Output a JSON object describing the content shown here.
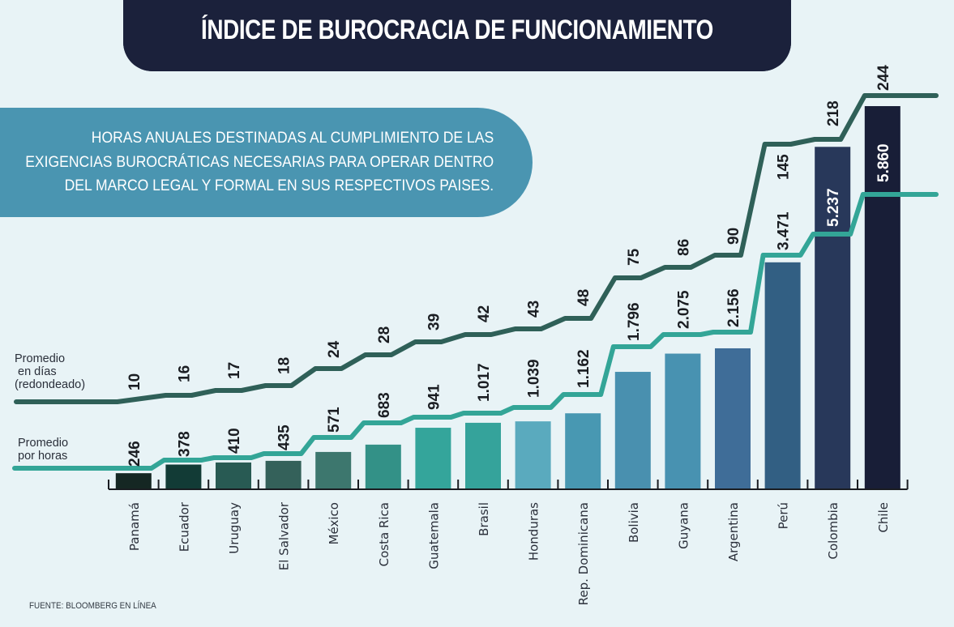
{
  "title": "ÍNDICE DE BUROCRACIA DE FUNCIONAMIENTO",
  "subtitle_lines": [
    "HORAS ANUALES DESTINADAS AL CUMPLIMIENTO DE LAS",
    "EXIGENCIAS BUROCRÁTICAS NECESARIAS PARA OPERAR DENTRO",
    "DEL MARCO LEGAL Y FORMAL EN SUS RESPECTIVOS PAISES."
  ],
  "legend": {
    "days_line": [
      "Promedio",
      " en días",
      "(redondeado)"
    ],
    "hours_line": [
      "Promedio",
      "por horas"
    ]
  },
  "source": "FUENTE: BLOOMBERG EN LÍNEA",
  "colors": {
    "days_line": "#2f6058",
    "hours_line": "#33a597",
    "title_bg": "#1b213b",
    "subtitle_bg": "#4a95b1",
    "background": "#e8f3f6"
  },
  "chart_data": {
    "type": "bar",
    "title": "ÍNDICE DE BUROCRACIA DE FUNCIONAMIENTO",
    "xlabel": "",
    "ylabel": "",
    "categories": [
      "Panamá",
      "Ecuador",
      "Uruguay",
      "El Salvador",
      "México",
      "Costa Rica",
      "Guatemala",
      "Brasil",
      "Honduras",
      "Rep. Dominicana",
      "Bolivia",
      "Guyana",
      "Argentina",
      "Perú",
      "Colombia",
      "Chile"
    ],
    "series": [
      {
        "name": "Promedio por horas",
        "type": "bar",
        "values": [
          246,
          378,
          410,
          435,
          571,
          683,
          941,
          1017,
          1039,
          1162,
          1796,
          2075,
          2156,
          3471,
          5237,
          5860
        ],
        "labels": [
          "246",
          "378",
          "410",
          "435",
          "571",
          "683",
          "941",
          "1.017",
          "1.039",
          "1.162",
          "1.796",
          "2.075",
          "2.156",
          "3.471",
          "5.237",
          "5.860"
        ],
        "colors": [
          "#152723",
          "#123b36",
          "#285a53",
          "#34615a",
          "#3d776e",
          "#339187",
          "#34a59b",
          "#35a39b",
          "#5aaabe",
          "#4898b2",
          "#4990af",
          "#4892b1",
          "#3f6d98",
          "#325f83",
          "#28385a",
          "#181e37"
        ]
      },
      {
        "name": "Promedio en días (redondeado)",
        "type": "line",
        "values": [
          10,
          16,
          17,
          18,
          24,
          28,
          39,
          42,
          43,
          48,
          75,
          86,
          90,
          145,
          218,
          244
        ],
        "labels": [
          "10",
          "16",
          "17",
          "18",
          "24",
          "28",
          "39",
          "42",
          "43",
          "48",
          "75",
          "86",
          "90",
          "145",
          "218",
          "244"
        ]
      }
    ],
    "ylim": [
      0,
      6000
    ],
    "grid": false,
    "legend": "left"
  }
}
